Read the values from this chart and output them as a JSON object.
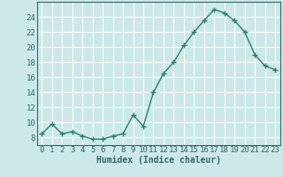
{
  "x": [
    0,
    1,
    2,
    3,
    4,
    5,
    6,
    7,
    8,
    9,
    10,
    11,
    12,
    13,
    14,
    15,
    16,
    17,
    18,
    19,
    20,
    21,
    22,
    23
  ],
  "y": [
    8.5,
    9.8,
    8.5,
    8.8,
    8.2,
    7.8,
    7.8,
    8.2,
    8.5,
    11.0,
    9.5,
    14.0,
    16.5,
    18.0,
    20.2,
    22.0,
    23.5,
    25.0,
    24.5,
    23.5,
    22.0,
    19.0,
    17.5,
    17.0
  ],
  "line_color": "#2e7d6e",
  "marker": "+",
  "marker_color": "#2e7d6e",
  "bg_color": "#cce8e8",
  "grid_color": "#ffffff",
  "grid_minor_color": "#ddf0f0",
  "xlabel": "Humidex (Indice chaleur)",
  "ylim": [
    7,
    26
  ],
  "xlim": [
    -0.5,
    23.5
  ],
  "yticks": [
    8,
    10,
    12,
    14,
    16,
    18,
    20,
    22,
    24
  ],
  "xticks": [
    0,
    1,
    2,
    3,
    4,
    5,
    6,
    7,
    8,
    9,
    10,
    11,
    12,
    13,
    14,
    15,
    16,
    17,
    18,
    19,
    20,
    21,
    22,
    23
  ],
  "line_width": 1.0,
  "marker_size": 4,
  "xlabel_fontsize": 7,
  "tick_fontsize": 6.5,
  "spine_color": "#336666"
}
